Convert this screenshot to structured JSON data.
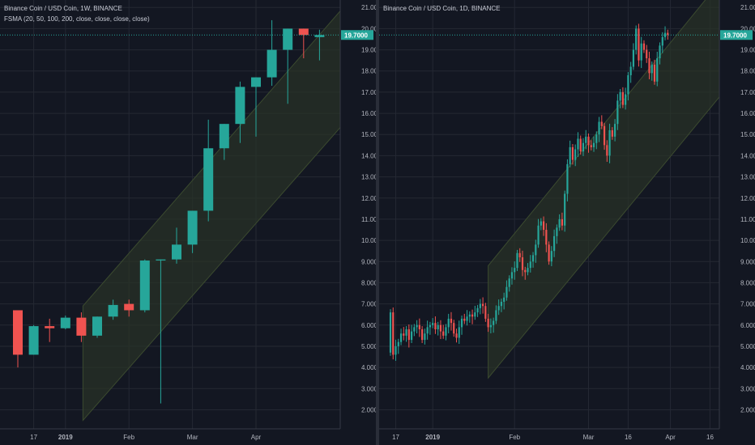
{
  "colors": {
    "background": "#131722",
    "grid": "#242833",
    "axis_text": "#b2b5be",
    "up": "#26a69a",
    "down": "#ef5350",
    "channel_fill": "#2a3327",
    "channel_line": "#3b4a2f",
    "price_line": "#26a69a"
  },
  "chart_data": [
    {
      "type": "candlestick",
      "title": "Binance Coin / USD Coin, 1W, BINANCE",
      "indicator": "FSMA (20, 50, 100, 200, close, close, close, close)",
      "last_price_label": "19.7000",
      "y_ticks": [
        "2.0000",
        "3.0000",
        "4.0000",
        "5.0000",
        "6.0000",
        "7.0000",
        "8.0000",
        "9.0000",
        "10.0000",
        "11.0000",
        "12.0000",
        "13.0000",
        "14.0000",
        "15.0000",
        "16.0000",
        "17.0000",
        "18.0000",
        "19.0000",
        "20.0000",
        "21.0000"
      ],
      "ylim": [
        1.1,
        21.2
      ],
      "x_ticks": [
        {
          "label": "17",
          "bar": 1
        },
        {
          "label": "2019",
          "bar": 3
        },
        {
          "label": "Feb",
          "bar": 7
        },
        {
          "label": "Mar",
          "bar": 11
        },
        {
          "label": "Apr",
          "bar": 15
        }
      ],
      "candles": [
        {
          "o": 6.7,
          "h": 6.7,
          "l": 4.0,
          "c": 4.6
        },
        {
          "o": 4.6,
          "h": 6.0,
          "l": 4.6,
          "c": 5.95
        },
        {
          "o": 5.95,
          "h": 6.3,
          "l": 5.2,
          "c": 5.85
        },
        {
          "o": 5.85,
          "h": 6.45,
          "l": 5.8,
          "c": 6.35
        },
        {
          "o": 6.35,
          "h": 6.6,
          "l": 5.2,
          "c": 5.5
        },
        {
          "o": 5.5,
          "h": 6.4,
          "l": 5.4,
          "c": 6.4
        },
        {
          "o": 6.4,
          "h": 7.2,
          "l": 6.25,
          "c": 6.95
        },
        {
          "o": 7.0,
          "h": 7.2,
          "l": 6.4,
          "c": 6.7
        },
        {
          "o": 6.7,
          "h": 9.1,
          "l": 6.6,
          "c": 9.05
        },
        {
          "o": 9.05,
          "h": 9.1,
          "l": 2.3,
          "c": 9.1
        },
        {
          "o": 9.1,
          "h": 10.6,
          "l": 8.9,
          "c": 9.8
        },
        {
          "o": 9.8,
          "h": 11.4,
          "l": 9.4,
          "c": 11.4
        },
        {
          "o": 11.4,
          "h": 15.7,
          "l": 10.9,
          "c": 14.35
        },
        {
          "o": 14.35,
          "h": 15.5,
          "l": 13.8,
          "c": 15.5
        },
        {
          "o": 15.5,
          "h": 17.5,
          "l": 14.6,
          "c": 17.25
        },
        {
          "o": 17.25,
          "h": 17.7,
          "l": 14.9,
          "c": 17.7
        },
        {
          "o": 17.7,
          "h": 20.4,
          "l": 17.3,
          "c": 19.0
        },
        {
          "o": 19.0,
          "h": 20.0,
          "l": 16.45,
          "c": 20.0
        },
        {
          "o": 20.0,
          "h": 20.0,
          "l": 18.6,
          "c": 19.7
        },
        {
          "o": 19.6,
          "h": 19.95,
          "l": 18.5,
          "c": 19.7
        }
      ],
      "channel": {
        "start_bar": 4.1,
        "end_bar": 20.5,
        "upper": [
          6.9,
          21.0
        ],
        "lower": [
          1.5,
          15.5
        ]
      }
    },
    {
      "type": "candlestick",
      "title": "Binance Coin / USD Coin, 1D, BINANCE",
      "last_price_label": "19.7000",
      "y_ticks": [
        "2.0000",
        "3.0000",
        "4.0000",
        "5.0000",
        "6.0000",
        "7.0000",
        "8.0000",
        "9.0000",
        "10.0000",
        "11.0000",
        "12.0000",
        "13.0000",
        "14.0000",
        "15.0000",
        "16.0000",
        "17.0000",
        "18.0000",
        "19.0000",
        "20.0000",
        "21.0000"
      ],
      "ylim": [
        1.1,
        21.2
      ],
      "x_ticks": [
        {
          "label": "17",
          "day": 2
        },
        {
          "label": "2019",
          "day": 16
        },
        {
          "label": "Feb",
          "day": 47
        },
        {
          "label": "Mar",
          "day": 75
        },
        {
          "label": "16",
          "day": 90
        },
        {
          "label": "Apr",
          "day": 106
        },
        {
          "label": "16",
          "day": 121
        }
      ],
      "daily_close": [
        6.6,
        4.6,
        5.0,
        5.2,
        5.6,
        5.5,
        5.8,
        5.3,
        5.7,
        5.9,
        6.0,
        5.8,
        5.3,
        5.6,
        5.9,
        6.0,
        6.1,
        5.8,
        6.0,
        5.7,
        5.5,
        5.9,
        6.3,
        6.1,
        5.6,
        5.4,
        5.9,
        6.3,
        6.2,
        6.4,
        6.5,
        6.4,
        6.6,
        6.8,
        7.0,
        6.9,
        6.3,
        5.9,
        6.0,
        6.2,
        6.7,
        6.9,
        7.1,
        7.3,
        7.8,
        8.2,
        8.5,
        8.7,
        9.4,
        9.2,
        8.6,
        8.5,
        8.7,
        9.0,
        9.3,
        9.8,
        10.7,
        10.9,
        10.5,
        9.8,
        9.0,
        9.5,
        10.2,
        10.6,
        11.0,
        10.7,
        12.2,
        13.6,
        14.4,
        13.8,
        14.3,
        14.8,
        14.2,
        14.6,
        14.9,
        14.5,
        14.4,
        14.6,
        15.0,
        15.6,
        15.4,
        14.5,
        14.0,
        15.2,
        14.9,
        15.5,
        16.6,
        17.0,
        16.4,
        16.9,
        17.8,
        18.2,
        19.0,
        20.0,
        18.5,
        19.3,
        19.0,
        18.6,
        17.9,
        18.3,
        17.5,
        18.6,
        19.2,
        19.6,
        19.8,
        19.7
      ],
      "channel": {
        "start_day": 37,
        "end_day": 130,
        "upper": [
          8.8,
          23.0
        ],
        "lower": [
          3.5,
          17.6
        ]
      }
    }
  ]
}
